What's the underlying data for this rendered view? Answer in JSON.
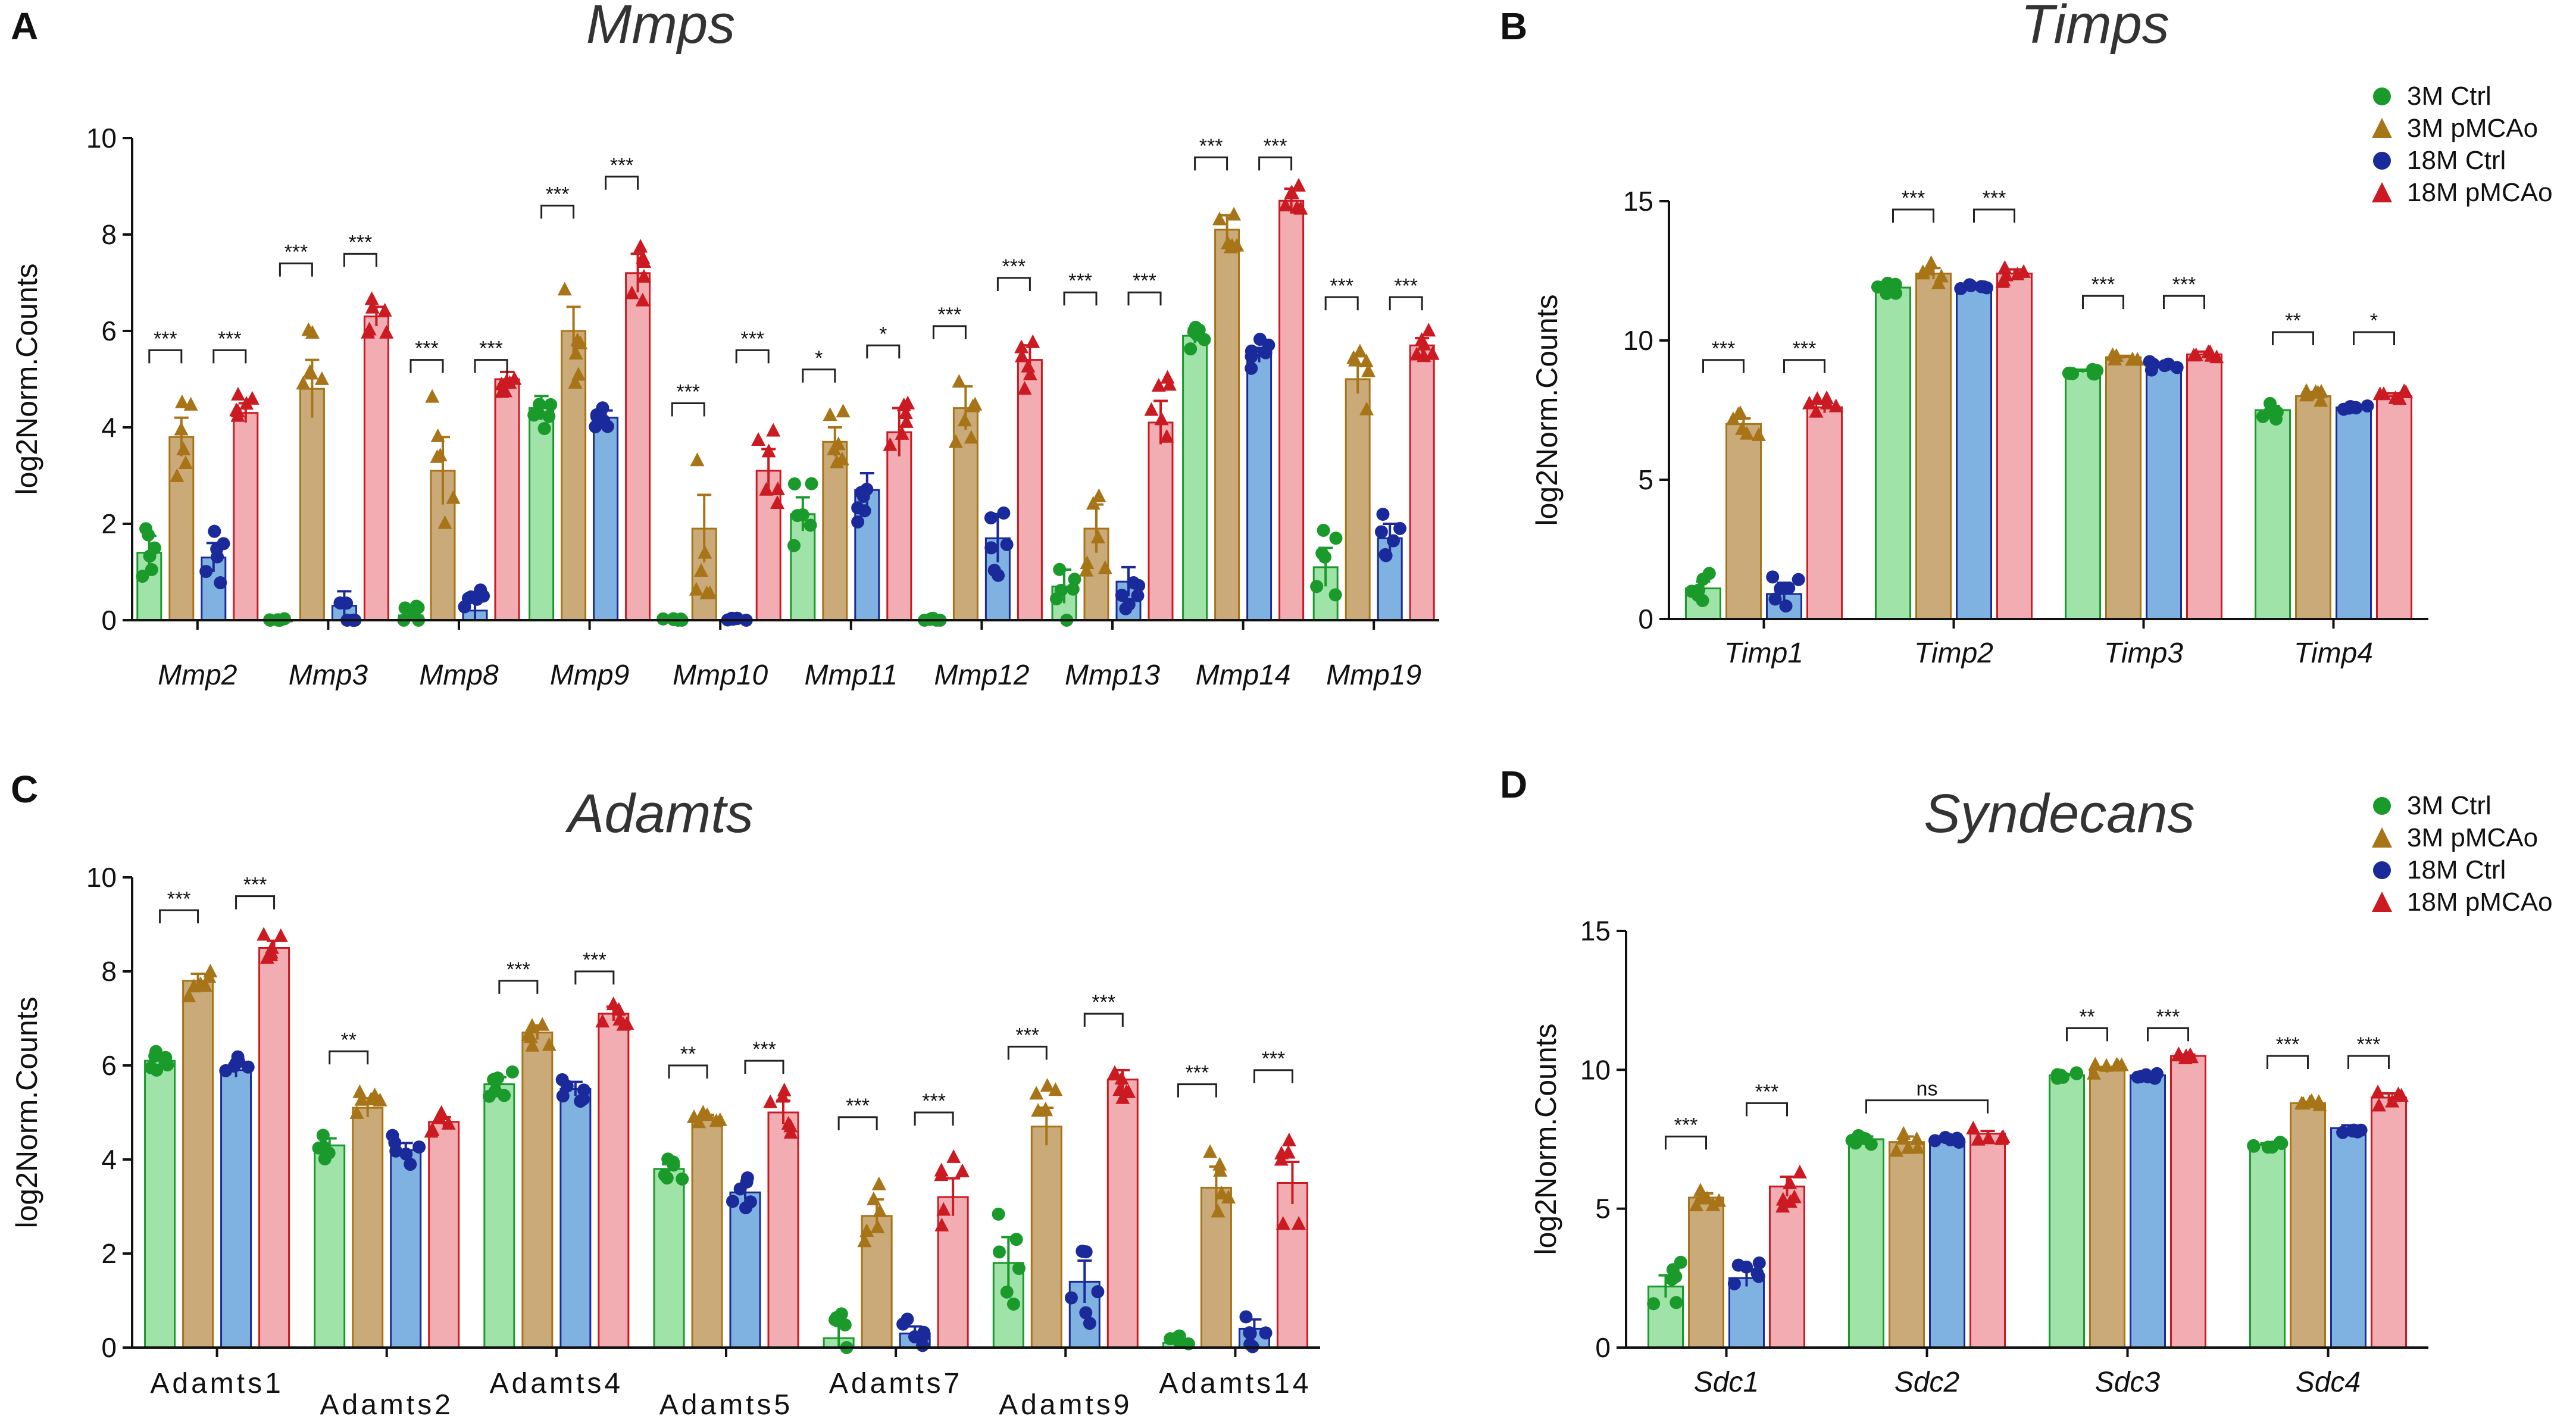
{
  "legend": {
    "groups": [
      {
        "name": "3M Ctrl",
        "fill": "#9fe3a9",
        "marker": "#1a9a2a",
        "shape": "circle"
      },
      {
        "name": "3M pMCAo",
        "fill": "#c9aa78",
        "marker": "#a87418",
        "shape": "triangle"
      },
      {
        "name": "18M Ctrl",
        "fill": "#7fb2e0",
        "marker": "#1a2a9a",
        "shape": "circle"
      },
      {
        "name": "18M pMCAo",
        "fill": "#f1adb1",
        "marker": "#cc1a22",
        "shape": "triangle"
      }
    ]
  },
  "chart_data": [
    {
      "panel": "A",
      "type": "bar",
      "title": "Mmps",
      "ylabel": "log2Norm.Counts",
      "ylim": [
        0,
        10
      ],
      "yticks": [
        0,
        2,
        4,
        6,
        8,
        10
      ],
      "italic_categories": true,
      "categories": [
        "Mmp2",
        "Mmp3",
        "Mmp8",
        "Mmp9",
        "Mmp10",
        "Mmp11",
        "Mmp12",
        "Mmp13",
        "Mmp14",
        "Mmp19"
      ],
      "series": [
        {
          "name": "3M Ctrl",
          "values": [
            1.4,
            0.0,
            0.1,
            4.4,
            0.0,
            2.2,
            0.0,
            0.7,
            5.9,
            1.1
          ],
          "errors": [
            0.35,
            0.02,
            0.1,
            0.25,
            0.02,
            0.35,
            0.02,
            0.35,
            0.15,
            0.4
          ]
        },
        {
          "name": "3M pMCAo",
          "values": [
            3.8,
            4.8,
            3.1,
            6.0,
            1.9,
            3.7,
            4.4,
            1.9,
            8.1,
            5.0
          ],
          "errors": [
            0.4,
            0.6,
            0.7,
            0.5,
            0.7,
            0.3,
            0.45,
            0.5,
            0.3,
            0.3
          ]
        },
        {
          "name": "18M Ctrl",
          "values": [
            1.3,
            0.3,
            0.2,
            4.2,
            0.0,
            2.7,
            1.7,
            0.8,
            5.5,
            1.7
          ],
          "errors": [
            0.3,
            0.3,
            0.2,
            0.15,
            0.02,
            0.35,
            0.5,
            0.3,
            0.15,
            0.3
          ]
        },
        {
          "name": "18M pMCAo",
          "values": [
            4.3,
            6.3,
            5.0,
            7.2,
            3.1,
            3.9,
            5.4,
            4.1,
            8.7,
            5.7
          ],
          "errors": [
            0.2,
            0.2,
            0.15,
            0.4,
            0.45,
            0.5,
            0.3,
            0.45,
            0.25,
            0.15
          ]
        }
      ],
      "brackets": [
        {
          "cat": 0,
          "from": 0,
          "to": 1,
          "label": "***",
          "y": 5.6
        },
        {
          "cat": 0,
          "from": 2,
          "to": 3,
          "label": "***",
          "y": 5.6
        },
        {
          "cat": 1,
          "from": 0,
          "to": 1,
          "label": "***",
          "y": 7.4
        },
        {
          "cat": 1,
          "from": 2,
          "to": 3,
          "label": "***",
          "y": 7.6
        },
        {
          "cat": 2,
          "from": 0,
          "to": 1,
          "label": "***",
          "y": 5.4
        },
        {
          "cat": 2,
          "from": 2,
          "to": 3,
          "label": "***",
          "y": 5.4
        },
        {
          "cat": 3,
          "from": 0,
          "to": 1,
          "label": "***",
          "y": 8.6
        },
        {
          "cat": 3,
          "from": 2,
          "to": 3,
          "label": "***",
          "y": 9.2
        },
        {
          "cat": 4,
          "from": 0,
          "to": 1,
          "label": "***",
          "y": 4.5
        },
        {
          "cat": 4,
          "from": 2,
          "to": 3,
          "label": "***",
          "y": 5.6
        },
        {
          "cat": 5,
          "from": 0,
          "to": 1,
          "label": "*",
          "y": 5.2
        },
        {
          "cat": 5,
          "from": 2,
          "to": 3,
          "label": "*",
          "y": 5.7
        },
        {
          "cat": 6,
          "from": 0,
          "to": 1,
          "label": "***",
          "y": 6.1
        },
        {
          "cat": 6,
          "from": 2,
          "to": 3,
          "label": "***",
          "y": 7.1
        },
        {
          "cat": 7,
          "from": 0,
          "to": 1,
          "label": "***",
          "y": 6.8
        },
        {
          "cat": 7,
          "from": 2,
          "to": 3,
          "label": "***",
          "y": 6.8
        },
        {
          "cat": 8,
          "from": 0,
          "to": 1,
          "label": "***",
          "y": 9.6
        },
        {
          "cat": 8,
          "from": 2,
          "to": 3,
          "label": "***",
          "y": 9.6
        },
        {
          "cat": 9,
          "from": 0,
          "to": 1,
          "label": "***",
          "y": 6.7
        },
        {
          "cat": 9,
          "from": 2,
          "to": 3,
          "label": "***",
          "y": 6.7
        }
      ]
    },
    {
      "panel": "B",
      "type": "bar",
      "title": "Timps",
      "ylabel": "log2Norm.Counts",
      "ylim": [
        0,
        15
      ],
      "yticks": [
        0,
        5,
        10,
        15
      ],
      "italic_categories": true,
      "categories": [
        "Timp1",
        "Timp2",
        "Timp3",
        "Timp4"
      ],
      "series": [
        {
          "name": "3M Ctrl",
          "values": [
            1.1,
            11.9,
            8.9,
            7.5
          ],
          "errors": [
            0.25,
            0.1,
            0.05,
            0.15
          ]
        },
        {
          "name": "3M pMCAo",
          "values": [
            7.0,
            12.4,
            9.4,
            8.0
          ],
          "errors": [
            0.2,
            0.2,
            0.05,
            0.15
          ]
        },
        {
          "name": "18M Ctrl",
          "values": [
            0.9,
            11.9,
            9.1,
            7.6
          ],
          "errors": [
            0.4,
            0.05,
            0.1,
            0.05
          ]
        },
        {
          "name": "18M pMCAo",
          "values": [
            7.6,
            12.4,
            9.5,
            8.0
          ],
          "errors": [
            0.2,
            0.15,
            0.1,
            0.1
          ]
        }
      ],
      "brackets": [
        {
          "cat": 0,
          "from": 0,
          "to": 1,
          "label": "***",
          "y": 9.3
        },
        {
          "cat": 0,
          "from": 2,
          "to": 3,
          "label": "***",
          "y": 9.3
        },
        {
          "cat": 1,
          "from": 0,
          "to": 1,
          "label": "***",
          "y": 14.7
        },
        {
          "cat": 1,
          "from": 2,
          "to": 3,
          "label": "***",
          "y": 14.7
        },
        {
          "cat": 2,
          "from": 0,
          "to": 1,
          "label": "***",
          "y": 11.6
        },
        {
          "cat": 2,
          "from": 2,
          "to": 3,
          "label": "***",
          "y": 11.6
        },
        {
          "cat": 3,
          "from": 0,
          "to": 1,
          "label": "**",
          "y": 10.3
        },
        {
          "cat": 3,
          "from": 2,
          "to": 3,
          "label": "*",
          "y": 10.3
        }
      ]
    },
    {
      "panel": "C",
      "type": "bar",
      "title": "Adamts",
      "ylabel": "log2Norm.Counts",
      "ylim": [
        0,
        10
      ],
      "yticks": [
        0,
        2,
        4,
        6,
        8,
        10
      ],
      "italic_categories": false,
      "staggered_labels": true,
      "categories": [
        "Adamts1",
        "Adamts2",
        "Adamts4",
        "Adamts5",
        "Adamts7",
        "Adamts9",
        "Adamts14"
      ],
      "series": [
        {
          "name": "3M Ctrl",
          "values": [
            6.1,
            4.3,
            5.6,
            3.8,
            0.2,
            1.8,
            0.1
          ],
          "errors": [
            0.1,
            0.15,
            0.15,
            0.1,
            0.3,
            0.55,
            0.1
          ]
        },
        {
          "name": "3M pMCAo",
          "values": [
            7.8,
            5.1,
            6.7,
            4.9,
            2.8,
            4.7,
            3.4
          ],
          "errors": [
            0.15,
            0.2,
            0.15,
            0.05,
            0.35,
            0.4,
            0.45
          ]
        },
        {
          "name": "18M Ctrl",
          "values": [
            5.9,
            4.2,
            5.5,
            3.3,
            0.3,
            1.4,
            0.4
          ],
          "errors": [
            0.15,
            0.15,
            0.15,
            0.15,
            0.15,
            0.45,
            0.2
          ]
        },
        {
          "name": "18M pMCAo",
          "values": [
            8.5,
            4.8,
            7.1,
            5.0,
            3.2,
            5.7,
            3.5
          ],
          "errors": [
            0.15,
            0.1,
            0.15,
            0.25,
            0.4,
            0.2,
            0.45
          ]
        }
      ],
      "brackets": [
        {
          "cat": 0,
          "from": 0,
          "to": 1,
          "label": "***",
          "y": 9.3
        },
        {
          "cat": 0,
          "from": 2,
          "to": 3,
          "label": "***",
          "y": 9.6
        },
        {
          "cat": 1,
          "from": 0,
          "to": 1,
          "label": "**",
          "y": 6.3
        },
        {
          "cat": 2,
          "from": 0,
          "to": 1,
          "label": "***",
          "y": 7.8
        },
        {
          "cat": 2,
          "from": 2,
          "to": 3,
          "label": "***",
          "y": 8.0
        },
        {
          "cat": 3,
          "from": 0,
          "to": 1,
          "label": "**",
          "y": 6.0
        },
        {
          "cat": 3,
          "from": 2,
          "to": 3,
          "label": "***",
          "y": 6.1
        },
        {
          "cat": 4,
          "from": 0,
          "to": 1,
          "label": "***",
          "y": 4.9
        },
        {
          "cat": 4,
          "from": 2,
          "to": 3,
          "label": "***",
          "y": 5.0
        },
        {
          "cat": 5,
          "from": 0,
          "to": 1,
          "label": "***",
          "y": 6.4
        },
        {
          "cat": 5,
          "from": 2,
          "to": 3,
          "label": "***",
          "y": 7.1
        },
        {
          "cat": 6,
          "from": 0,
          "to": 1,
          "label": "***",
          "y": 5.6
        },
        {
          "cat": 6,
          "from": 2,
          "to": 3,
          "label": "***",
          "y": 5.9
        }
      ]
    },
    {
      "panel": "D",
      "type": "bar",
      "title": "Syndecans",
      "ylabel": "log2Norm.Counts",
      "ylim": [
        0,
        15
      ],
      "yticks": [
        0,
        5,
        10,
        15
      ],
      "italic_categories": true,
      "categories": [
        "Sdc1",
        "Sdc2",
        "Sdc3",
        "Sdc4"
      ],
      "series": [
        {
          "name": "3M Ctrl",
          "values": [
            2.2,
            7.5,
            9.8,
            7.3
          ],
          "errors": [
            0.4,
            0.1,
            0.05,
            0.05
          ]
        },
        {
          "name": "3M pMCAo",
          "values": [
            5.4,
            7.4,
            10.0,
            8.8
          ],
          "errors": [
            0.15,
            0.2,
            0.1,
            0.05
          ]
        },
        {
          "name": "18M Ctrl",
          "values": [
            2.5,
            7.5,
            9.8,
            7.9
          ],
          "errors": [
            0.3,
            0.05,
            0.05,
            0.1
          ]
        },
        {
          "name": "18M pMCAo",
          "values": [
            5.8,
            7.7,
            10.5,
            9.0
          ],
          "errors": [
            0.35,
            0.1,
            0.05,
            0.15
          ]
        }
      ],
      "brackets": [
        {
          "cat": 0,
          "from": 0,
          "to": 1,
          "label": "***",
          "y": 7.6
        },
        {
          "cat": 0,
          "from": 2,
          "to": 3,
          "label": "***",
          "y": 8.8
        },
        {
          "cat": 1,
          "from": 0,
          "to": 3,
          "label": "ns",
          "y": 8.9
        },
        {
          "cat": 2,
          "from": 0,
          "to": 1,
          "label": "**",
          "y": 11.5
        },
        {
          "cat": 2,
          "from": 2,
          "to": 3,
          "label": "***",
          "y": 11.5
        },
        {
          "cat": 3,
          "from": 0,
          "to": 1,
          "label": "***",
          "y": 10.5
        },
        {
          "cat": 3,
          "from": 2,
          "to": 3,
          "label": "***",
          "y": 10.5
        }
      ]
    }
  ]
}
